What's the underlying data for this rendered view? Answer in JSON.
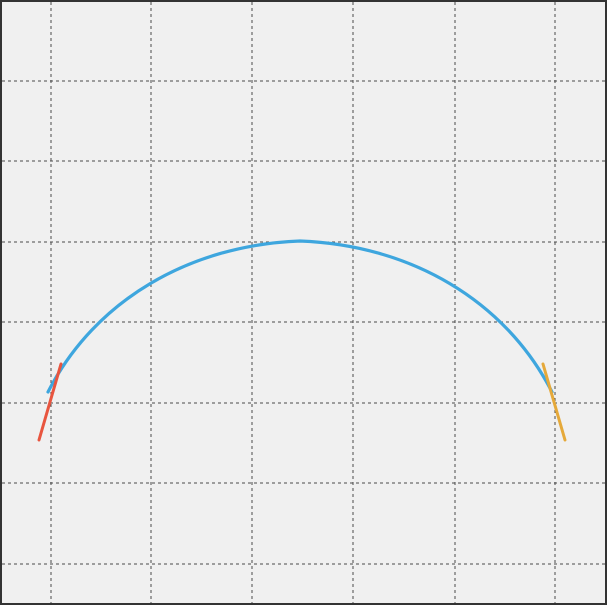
{
  "canvas": {
    "background": "#f0f0f0",
    "border_color": "#333333",
    "grid_color": "#4a4a4a",
    "grid": true,
    "grid_style": "dashed"
  },
  "curve": {
    "shape": "arc",
    "color": "#3ea6de",
    "start_cap_color": "#e8553f",
    "end_cap_color": "#e5a93a"
  }
}
